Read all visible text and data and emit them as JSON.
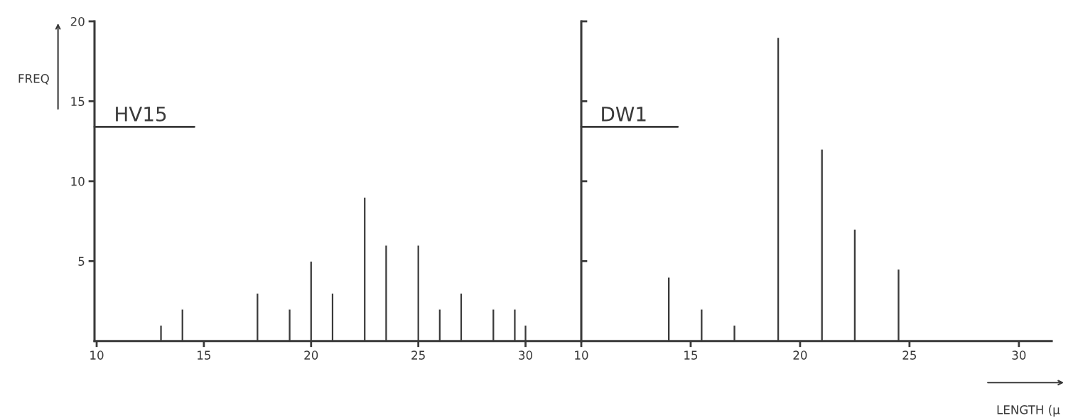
{
  "chart_data": [
    {
      "type": "bar",
      "title": "HV15",
      "ylabel": "FREQ",
      "color": "#3a3a3a",
      "x": [
        13,
        14,
        17.5,
        19,
        20,
        21,
        22.5,
        23.5,
        25,
        26,
        27,
        28.5,
        29.5,
        30
      ],
      "values": [
        1,
        2,
        3,
        2,
        5,
        3,
        9,
        6,
        6,
        2,
        3,
        2,
        2,
        1
      ],
      "xlim": [
        9.9,
        32.6
      ],
      "xticks": [
        10,
        15,
        20,
        25,
        30
      ],
      "ylim": [
        0,
        20
      ],
      "yticks": [
        5,
        10,
        15,
        20
      ],
      "grid": false
    },
    {
      "type": "bar",
      "title": "DW1",
      "xlabel": "LENGTH (μ",
      "color": "#3a3a3a",
      "x": [
        14,
        15.5,
        17,
        19,
        21,
        22.5,
        24.5
      ],
      "values": [
        4,
        2,
        1,
        19,
        12,
        7,
        4.5
      ],
      "xlim": [
        10,
        31.5
      ],
      "xticks": [
        10,
        15,
        20,
        25,
        30
      ],
      "ylim": [
        0,
        20
      ],
      "yticks": [
        {
          "value": 5,
          "label": null
        },
        {
          "value": 10,
          "label": null
        },
        {
          "value": 15,
          "label": null
        },
        {
          "value": 20,
          "label": null
        }
      ],
      "tick_labels": "x",
      "grid": false
    }
  ]
}
